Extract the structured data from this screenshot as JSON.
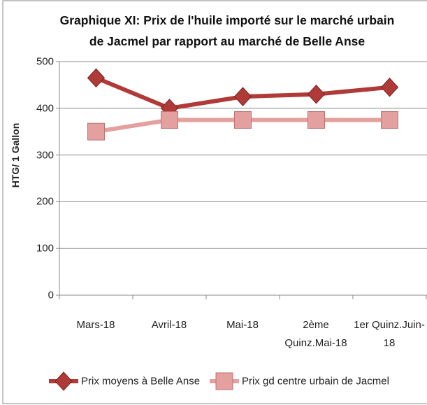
{
  "chart_data": {
    "type": "line",
    "title": "Graphique XI: Prix de l'huile importé sur le marché urbain de Jacmel par rapport au marché de Belle Anse",
    "y_label": "HTG/ 1 Gallon",
    "categories": [
      "Mars-18",
      "Avril-18",
      "Mai-18",
      "2ème Quinz.Mai-18",
      "1er Quinz.Juin-18"
    ],
    "series": [
      {
        "name": "Prix moyens à Belle Anse",
        "color": "#b03a37",
        "marker": "diamond",
        "values": [
          465,
          400,
          425,
          430,
          445
        ]
      },
      {
        "name": "Prix gd centre urbain de Jacmel",
        "color": "#e3a09e",
        "marker": "square",
        "values": [
          350,
          375,
          375,
          375,
          375
        ]
      }
    ],
    "ylim": [
      0,
      500
    ],
    "yticks": [
      0,
      100,
      200,
      300,
      400,
      500
    ],
    "grid": true,
    "legend": "bottom"
  }
}
